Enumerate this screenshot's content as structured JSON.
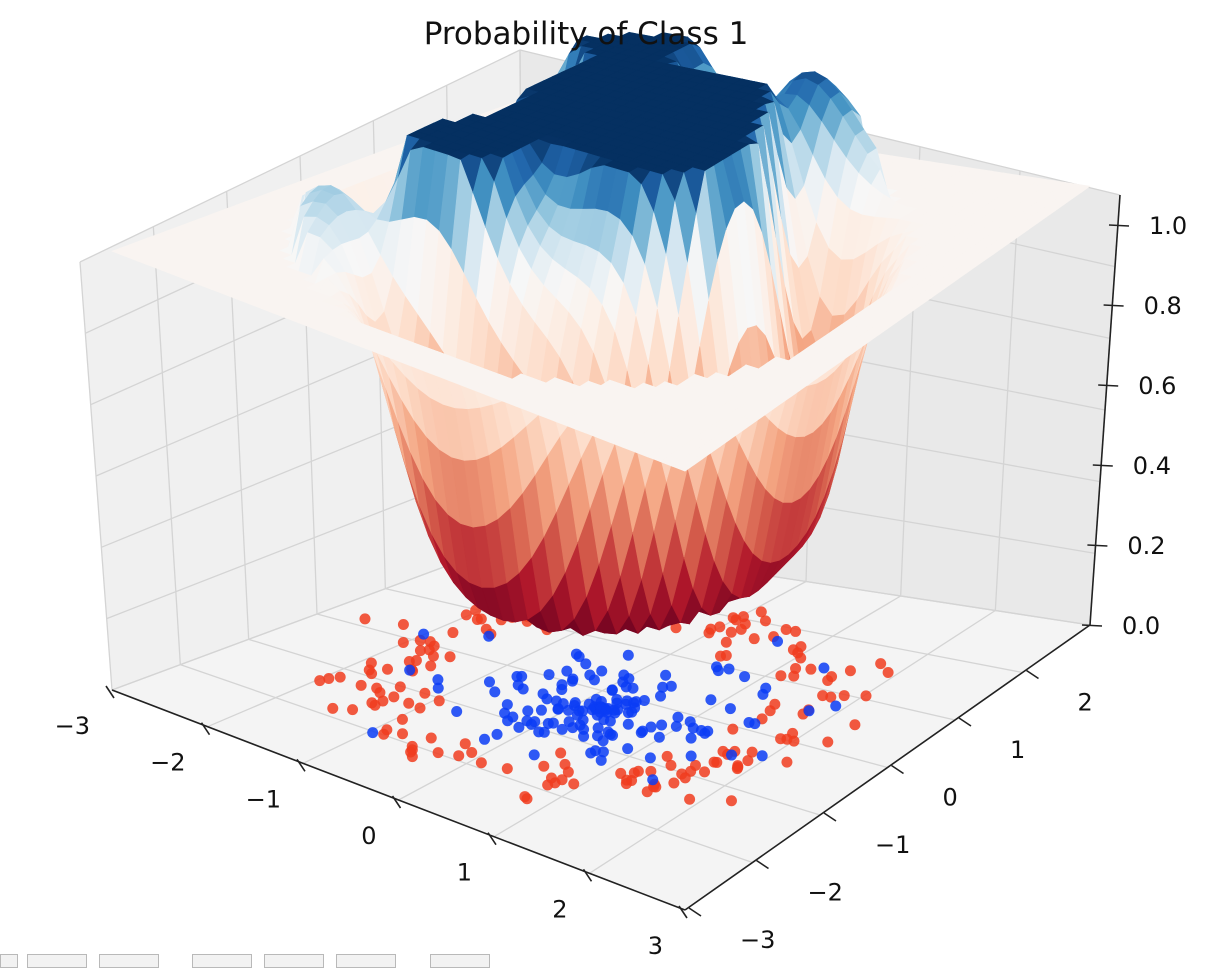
{
  "chart_data": {
    "type": "surface3d",
    "title": "Probability of Class 1",
    "x_ticks": [
      "−3",
      "−2",
      "−1",
      "0",
      "1",
      "2",
      "3"
    ],
    "y_ticks": [
      "−3",
      "−2",
      "−1",
      "0",
      "1",
      "2"
    ],
    "z_ticks": [
      "0.0",
      "0.2",
      "0.4",
      "0.6",
      "0.8",
      "1.0"
    ],
    "xlim": [
      -3,
      3
    ],
    "ylim": [
      -3,
      3
    ],
    "zlim": [
      0,
      1
    ],
    "grid": true,
    "colormap": "RdBu",
    "surface_peaks": [
      {
        "x": -0.5,
        "y": 0.8,
        "height": 1.0
      },
      {
        "x": 0.6,
        "y": 0.3,
        "height": 1.0
      },
      {
        "x": 0.5,
        "y": 1.6,
        "height": 0.95
      },
      {
        "x": -0.9,
        "y": 1.6,
        "height": 0.97
      },
      {
        "x": -1.2,
        "y": -1.0,
        "height": 0.97
      }
    ],
    "series": [
      {
        "color": "#f03c1e"
      },
      {
        "color": "#0a3cf5"
      }
    ]
  },
  "toolbar": {
    "button_count": 7
  }
}
